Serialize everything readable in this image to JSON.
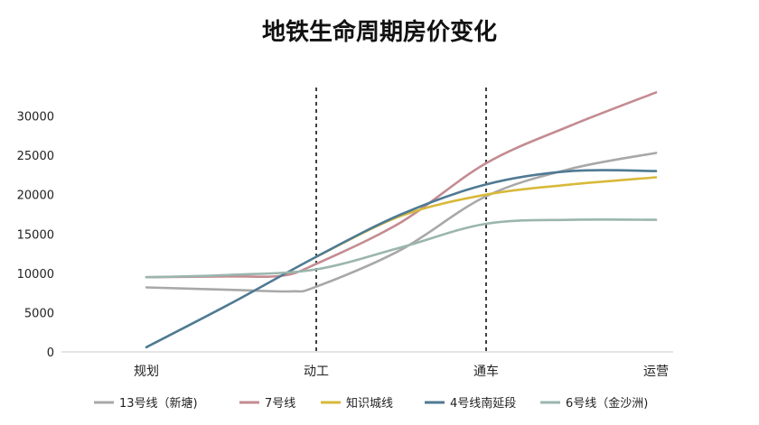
{
  "chart_data": {
    "type": "line",
    "title": "地铁生命周期房价变化",
    "xlabel": "",
    "ylabel": "",
    "categories": [
      "规划",
      "动工",
      "通车",
      "运营"
    ],
    "ylim": [
      0,
      35000
    ],
    "yticks": [
      0,
      5000,
      10000,
      15000,
      20000,
      25000,
      30000
    ],
    "grid": false,
    "legend_position": "bottom",
    "vertical_markers": [
      "动工",
      "通车"
    ],
    "series": [
      {
        "name": "13号线（新塘)",
        "color": "#a8a8a8",
        "points": [
          [
            0,
            8200
          ],
          [
            0.5,
            7900
          ],
          [
            0.85,
            7700
          ],
          [
            1,
            8300
          ],
          [
            1.5,
            13000
          ],
          [
            2,
            19800
          ],
          [
            2.5,
            23300
          ],
          [
            3,
            25300
          ]
        ]
      },
      {
        "name": "7号线",
        "color": "#c48b91",
        "points": [
          [
            0,
            9500
          ],
          [
            0.5,
            9600
          ],
          [
            0.8,
            9700
          ],
          [
            1,
            11200
          ],
          [
            1.5,
            16500
          ],
          [
            2,
            24000
          ],
          [
            2.5,
            28800
          ],
          [
            3,
            33000
          ]
        ]
      },
      {
        "name": "知识城线",
        "color": "#d8b93a",
        "points": [
          [
            1,
            12100
          ],
          [
            1.5,
            17300
          ],
          [
            2,
            20000
          ],
          [
            2.5,
            21300
          ],
          [
            3,
            22200
          ]
        ]
      },
      {
        "name": "4号线南延段",
        "color": "#4f7a93",
        "points": [
          [
            0,
            600
          ],
          [
            0.5,
            6200
          ],
          [
            1,
            12100
          ],
          [
            1.5,
            17500
          ],
          [
            2,
            21300
          ],
          [
            2.5,
            23000
          ],
          [
            3,
            23000
          ]
        ]
      },
      {
        "name": "6号线（金沙洲)",
        "color": "#9ab6ae",
        "points": [
          [
            0,
            9500
          ],
          [
            0.5,
            9800
          ],
          [
            1,
            10500
          ],
          [
            1.5,
            13300
          ],
          [
            2,
            16300
          ],
          [
            2.5,
            16800
          ],
          [
            3,
            16800
          ]
        ]
      }
    ]
  }
}
